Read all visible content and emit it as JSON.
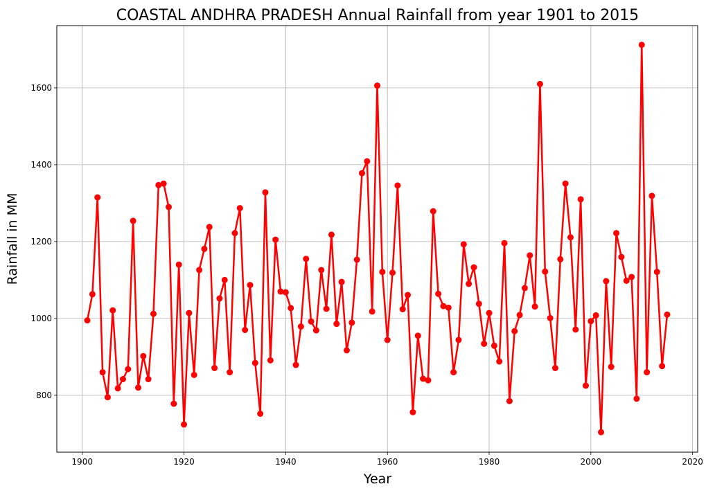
{
  "chart_data": {
    "type": "line",
    "title": "COASTAL ANDHRA PRADESH Annual Rainfall from year 1901 to 2015",
    "xlabel": "Year",
    "ylabel": "Rainfall in MM",
    "xlim": [
      1895,
      2021
    ],
    "ylim": [
      652,
      1762
    ],
    "x_ticks": [
      1900,
      1920,
      1940,
      1960,
      1980,
      2000,
      2020
    ],
    "y_ticks": [
      800,
      1000,
      1200,
      1400,
      1600
    ],
    "grid": true,
    "line_color": "#ff0000",
    "marker": "circle",
    "series": [
      {
        "x": [
          1901,
          1902,
          1903,
          1904,
          1905,
          1906,
          1907,
          1908,
          1909,
          1910,
          1911,
          1912,
          1913,
          1914,
          1915,
          1916,
          1917,
          1918,
          1919,
          1920,
          1921,
          1922,
          1923,
          1924,
          1925,
          1926,
          1927,
          1928,
          1929,
          1930,
          1931,
          1932,
          1933,
          1934,
          1935,
          1936,
          1937,
          1938,
          1939,
          1940,
          1941,
          1942,
          1943,
          1944,
          1945,
          1946,
          1947,
          1948,
          1949,
          1950,
          1951,
          1952,
          1953,
          1954,
          1955,
          1956,
          1957,
          1958,
          1959,
          1960,
          1961,
          1962,
          1963,
          1964,
          1965,
          1966,
          1967,
          1968,
          1969,
          1970,
          1971,
          1972,
          1973,
          1974,
          1975,
          1976,
          1977,
          1978,
          1979,
          1980,
          1981,
          1982,
          1983,
          1984,
          1985,
          1986,
          1987,
          1988,
          1989,
          1990,
          1991,
          1992,
          1993,
          1994,
          1995,
          1996,
          1997,
          1998,
          1999,
          2000,
          2001,
          2002,
          2003,
          2004,
          2005,
          2006,
          2007,
          2008,
          2009,
          2010,
          2011,
          2012,
          2013,
          2014,
          2015
        ],
        "values": [
          995,
          1063,
          1315,
          860,
          795,
          1021,
          818,
          842,
          868,
          1254,
          820,
          902,
          842,
          1012,
          1347,
          1351,
          1290,
          778,
          1140,
          724,
          1014,
          853,
          1126,
          1181,
          1238,
          871,
          1052,
          1100,
          860,
          1222,
          1287,
          970,
          1087,
          884,
          752,
          1328,
          891,
          1205,
          1070,
          1068,
          1027,
          879,
          979,
          1155,
          992,
          969,
          1126,
          1025,
          1218,
          986,
          1095,
          917,
          989,
          1153,
          1378,
          1409,
          1018,
          1606,
          1121,
          944,
          1119,
          1346,
          1024,
          1061,
          756,
          955,
          843,
          839,
          1279,
          1064,
          1032,
          1028,
          860,
          944,
          1193,
          1090,
          1133,
          1038,
          934,
          1014,
          929,
          888,
          1196,
          785,
          967,
          1009,
          1079,
          1164,
          1031,
          1610,
          1122,
          1001,
          871,
          1154,
          1351,
          1211,
          971,
          1310,
          825,
          993,
          1008,
          704,
          1097,
          874,
          1222,
          1160,
          1098,
          1108,
          791,
          1712,
          860,
          1319,
          1121,
          876,
          1010
        ]
      }
    ]
  }
}
